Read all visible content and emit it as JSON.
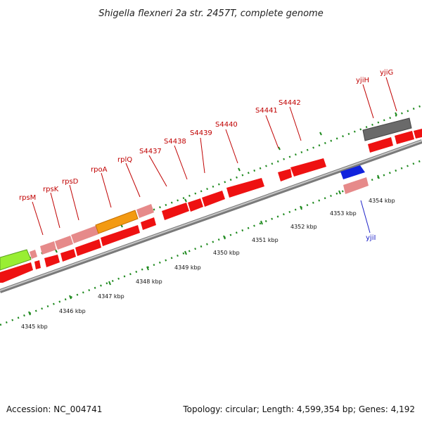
{
  "title": "Shigella flexneri 2a str. 2457T, complete genome",
  "footer": {
    "accession": "Accession: NC_004741",
    "summary": "Topology: circular; Length: 4,599,354 bp; Genes: 4,192"
  },
  "colors": {
    "gene_red": "#ee1111",
    "gene_pink": "#e68a8a",
    "gene_orange": "#f39a12",
    "gene_green": "#99ee33",
    "gene_blue": "#1122dd",
    "gene_gray": "#6a6a6a",
    "backbone": "#9b9b9b",
    "tick_green": "#1f8a1f",
    "label_red": "#c00000",
    "label_blue": "#1d22c8"
  },
  "kbp_labels": [
    "4345 kbp",
    "4346 kbp",
    "4347 kbp",
    "4348 kbp",
    "4349 kbp",
    "4350 kbp",
    "4351 kbp",
    "4352 kbp",
    "4353 kbp",
    "4354 kbp"
  ],
  "gene_labels": [
    "rpsM",
    "rpsK",
    "rpsD",
    "rpoA",
    "rplQ",
    "S4437",
    "S4438",
    "S4439",
    "S4440",
    "S4441",
    "S4442",
    "yjiH",
    "yjiG",
    "yjiI"
  ]
}
